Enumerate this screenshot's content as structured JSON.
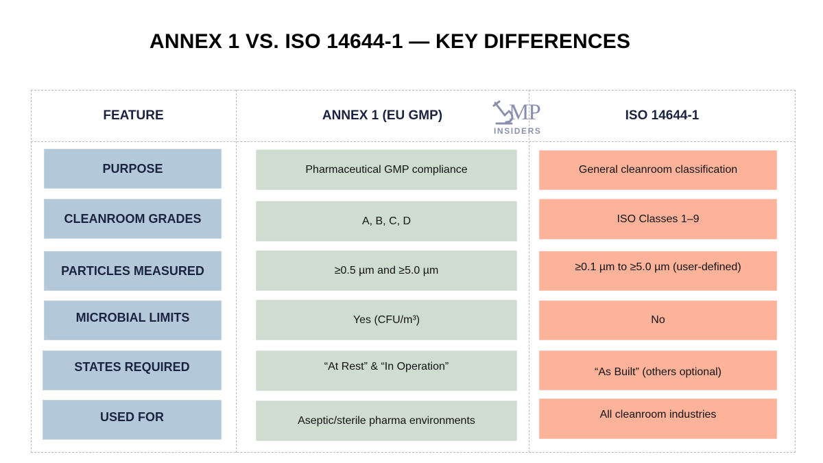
{
  "title": "ANNEX 1 VS. ISO 14644-1 — KEY DIFFERENCES",
  "headers": {
    "feature": "FEATURE",
    "annex": "ANNEX 1 (EU GMP)",
    "iso": "ISO 14644-1"
  },
  "logo": {
    "text_mp": "MP",
    "text_insiders": "INSIDERS",
    "color": "#8b8fae"
  },
  "colors": {
    "feature_bg": "#b3c8d9",
    "annex_bg": "#cfddd0",
    "iso_bg": "#fdb29a",
    "header_text": "#1c2340"
  },
  "rows": [
    {
      "feature": "PURPOSE",
      "annex": "Pharmaceutical GMP compliance",
      "iso": "General cleanroom classification"
    },
    {
      "feature": "CLEANROOM GRADES",
      "annex": "A, B, C, D",
      "iso": "ISO Classes 1–9"
    },
    {
      "feature": "PARTICLES MEASURED",
      "annex": "≥0.5 µm and ≥5.0 µm",
      "iso": "≥0.1 µm to ≥5.0 µm (user-defined)"
    },
    {
      "feature": "MICROBIAL LIMITS",
      "annex": "Yes (CFU/m³)",
      "iso": "No"
    },
    {
      "feature": "STATES REQUIRED",
      "annex": "“At Rest” & “In Operation”",
      "iso": "“As Built” (others optional)"
    },
    {
      "feature": "USED FOR",
      "annex": "Aseptic/sterile pharma environments",
      "iso": "All cleanroom industries"
    }
  ]
}
